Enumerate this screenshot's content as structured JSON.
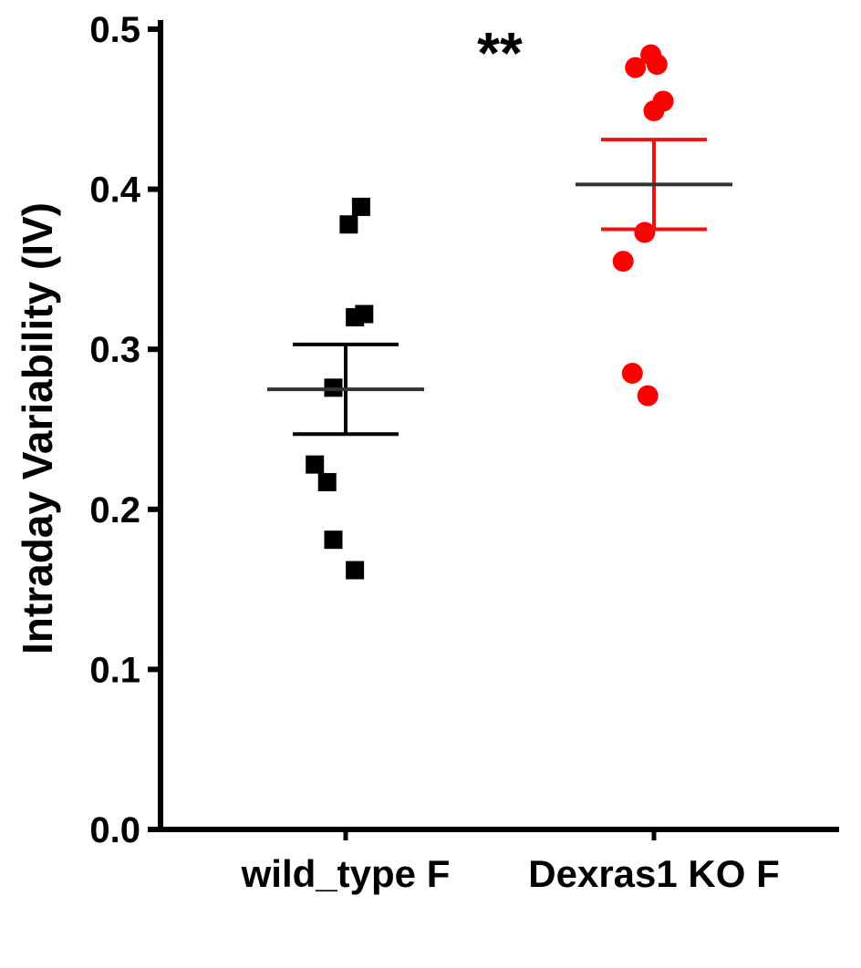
{
  "chart_data": {
    "type": "scatter",
    "subtype": "dot-plot-with-mean-sem",
    "ylabel": "Intraday Variability (IV)",
    "xlabel": "",
    "ylim": [
      0.0,
      0.5
    ],
    "yticks": [
      "0.0",
      "0.1",
      "0.2",
      "0.3",
      "0.4",
      "0.5"
    ],
    "categories": [
      "wild_type F",
      "Dexras1 KO F"
    ],
    "grid": false,
    "legend": "none",
    "significance": {
      "label": "**",
      "between": [
        "wild_type F",
        "Dexras1 KO F"
      ]
    },
    "series": [
      {
        "category": "wild_type F",
        "marker": "square",
        "color": "#000000",
        "error_color": "#000000",
        "mean_color": "#333333",
        "points": [
          {
            "x": 0.05,
            "y": 0.389
          },
          {
            "x": 0.01,
            "y": 0.378
          },
          {
            "x": 0.06,
            "y": 0.322
          },
          {
            "x": 0.03,
            "y": 0.32
          },
          {
            "x": -0.04,
            "y": 0.276
          },
          {
            "x": -0.1,
            "y": 0.228
          },
          {
            "x": -0.06,
            "y": 0.217
          },
          {
            "x": -0.04,
            "y": 0.181
          },
          {
            "x": 0.03,
            "y": 0.162
          }
        ],
        "mean": 0.275,
        "sem_upper": 0.303,
        "sem_lower": 0.247
      },
      {
        "category": "Dexras1 KO F",
        "marker": "circle",
        "color": "#ff0000",
        "error_color": "#ee1111",
        "mean_color": "#333333",
        "points": [
          {
            "x": -0.01,
            "y": 0.484
          },
          {
            "x": 0.01,
            "y": 0.478
          },
          {
            "x": -0.06,
            "y": 0.476
          },
          {
            "x": 0.03,
            "y": 0.455
          },
          {
            "x": 0.0,
            "y": 0.449
          },
          {
            "x": -0.03,
            "y": 0.373
          },
          {
            "x": -0.1,
            "y": 0.355
          },
          {
            "x": -0.07,
            "y": 0.285
          },
          {
            "x": -0.02,
            "y": 0.271
          }
        ],
        "mean": 0.403,
        "sem_upper": 0.431,
        "sem_lower": 0.375
      }
    ]
  }
}
